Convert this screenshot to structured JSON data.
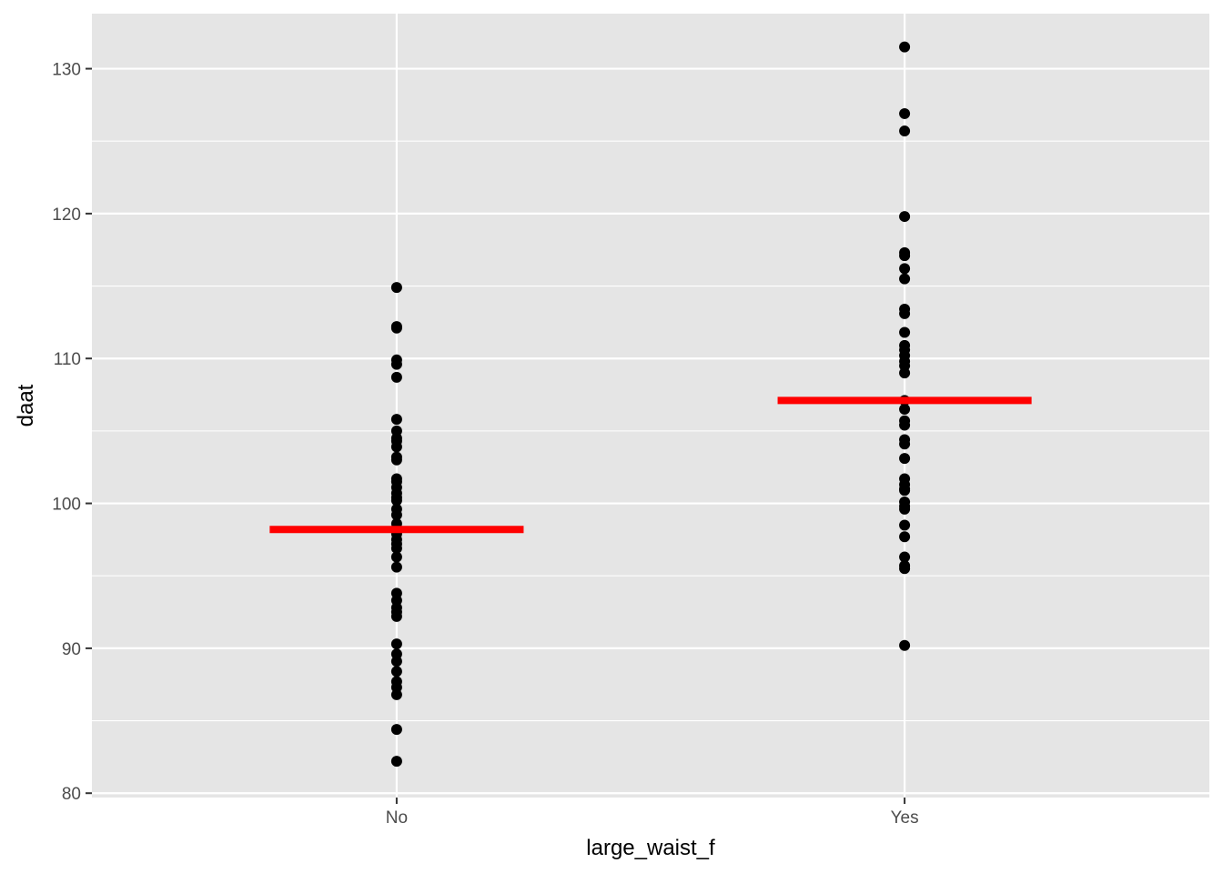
{
  "chart_data": {
    "type": "scatter",
    "title": "",
    "xlabel": "large_waist_f",
    "ylabel": "daat",
    "categories": [
      "No",
      "Yes"
    ],
    "ylim": [
      79.7,
      133.8
    ],
    "yticks": [
      80,
      90,
      100,
      110,
      120,
      130
    ],
    "grid": true,
    "legend": "none",
    "colors": {
      "panel": "#e5e5e5",
      "grid": "#ffffff",
      "points": "#000000",
      "mean_line": "#ff0000"
    },
    "series": [
      {
        "category": "No",
        "values": [
          114.9,
          112.2,
          112.1,
          109.9,
          109.6,
          108.7,
          105.8,
          105.0,
          104.5,
          104.3,
          103.9,
          103.2,
          103.0,
          101.7,
          101.5,
          101.1,
          100.7,
          100.4,
          100.2,
          99.6,
          99.2,
          98.6,
          98.3,
          97.9,
          97.5,
          97.2,
          96.9,
          96.3,
          95.6,
          93.8,
          93.3,
          92.8,
          92.5,
          92.2,
          90.3,
          89.6,
          89.1,
          88.4,
          87.7,
          87.3,
          86.8,
          84.4,
          82.2
        ],
        "mean": 98.2
      },
      {
        "category": "Yes",
        "values": [
          131.5,
          126.9,
          125.7,
          119.8,
          117.3,
          117.1,
          116.2,
          115.5,
          113.4,
          113.1,
          111.8,
          110.9,
          110.6,
          110.2,
          109.8,
          109.5,
          109.0,
          107.1,
          106.5,
          105.7,
          105.4,
          104.4,
          104.1,
          103.1,
          101.7,
          101.3,
          101.0,
          100.9,
          100.1,
          99.8,
          99.6,
          98.5,
          97.7,
          96.3,
          95.7,
          95.5,
          90.2
        ],
        "mean": 107.1
      }
    ]
  }
}
